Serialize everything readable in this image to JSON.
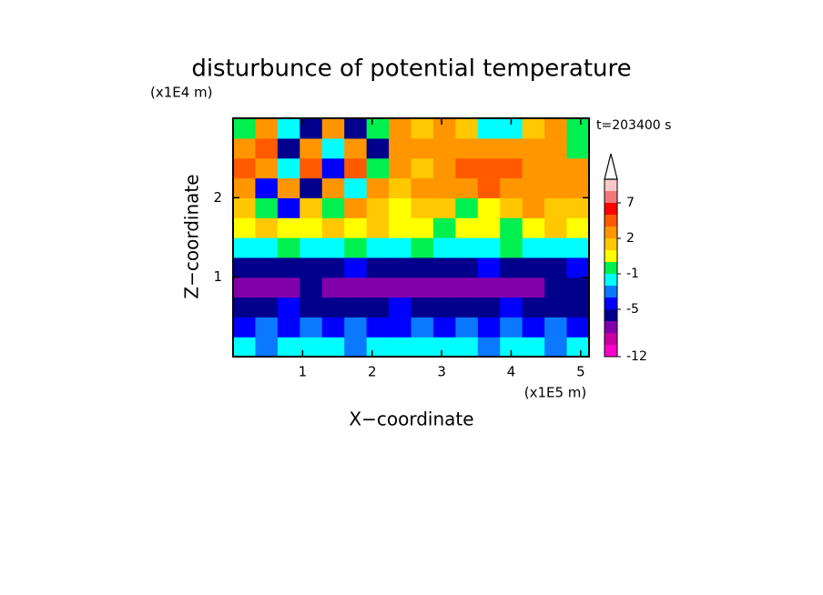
{
  "chart_data": {
    "type": "contour",
    "title": "disturbunce of potential temperature",
    "y_unit": "(x1E4 m)",
    "x_unit": "(x1E5 m)",
    "x_label": "X−coordinate",
    "y_label": "Z−coordinate",
    "annotation": "t=203400 s",
    "xlim": [
      0,
      5.12
    ],
    "ylim": [
      0,
      3
    ],
    "xticks": [
      1,
      2,
      3,
      4,
      5
    ],
    "yticks": [
      1,
      2
    ],
    "levels": [
      -12,
      -10,
      -8,
      -6,
      -5,
      -4,
      -3,
      -1,
      0,
      1,
      2,
      3,
      5,
      7,
      9,
      11
    ],
    "colors": [
      "#ff00c8",
      "#c800a0",
      "#8200aa",
      "#00008c",
      "#0000ff",
      "#0a78ff",
      "#00ffff",
      "#00f050",
      "#ffff00",
      "#ffc800",
      "#ff9600",
      "#ff5a00",
      "#ff0000",
      "#f07878",
      "#f8c8c8"
    ],
    "colorbar_ticks": [
      -12,
      -5,
      -1,
      2,
      7
    ],
    "z": [
      [
        -2,
        -3.5,
        -2,
        -2,
        -2,
        -3.5,
        -2,
        -2,
        -2,
        -2,
        -2,
        -3.5,
        -2,
        -2,
        -3.5,
        -2
      ],
      [
        -4.5,
        -3.5,
        -4.5,
        -3.5,
        -4.5,
        -3.5,
        -4.5,
        -4.5,
        -3.5,
        -4.5,
        -3.5,
        -4.5,
        -3.5,
        -4.5,
        -3.5,
        -4.5
      ],
      [
        -5.5,
        -5.5,
        -4.5,
        -5.5,
        -5.5,
        -5.5,
        -5.5,
        -4.5,
        -5.5,
        -5.5,
        -5.5,
        -5.5,
        -4.5,
        -5.5,
        -5.5,
        -5.5
      ],
      [
        -7,
        -7,
        -7,
        -5.5,
        -7,
        -7,
        -7,
        -7,
        -7,
        -7,
        -7,
        -7,
        -7,
        -7,
        -5.5,
        -5.5
      ],
      [
        -5.5,
        -5.5,
        -5.5,
        -5.5,
        -5.5,
        -4.5,
        -5.5,
        -5.5,
        -5.5,
        -5.5,
        -5.5,
        -4.5,
        -5.5,
        -5.5,
        -5.5,
        -4.5
      ],
      [
        -2,
        -2,
        -0.5,
        -2,
        -2,
        -0.5,
        -2,
        -2,
        -0.5,
        -2,
        -2,
        -2,
        -0.5,
        -2,
        -2,
        -2
      ],
      [
        0.5,
        1.5,
        0.5,
        0.5,
        1.5,
        0.5,
        1.5,
        0.5,
        0.5,
        -0.5,
        0.5,
        0.5,
        -0.5,
        0.5,
        1.5,
        0.5
      ],
      [
        1.5,
        -0.5,
        -4.5,
        1.5,
        -0.5,
        2.5,
        1.5,
        0.5,
        1.5,
        1.5,
        -0.5,
        0.5,
        1.5,
        2.5,
        1.5,
        1.5
      ],
      [
        2.5,
        -4.5,
        2.5,
        -5.5,
        2.5,
        -2,
        2.5,
        1.5,
        2.5,
        2.5,
        2.5,
        4,
        2.5,
        2.5,
        2.5,
        2.5
      ],
      [
        4,
        2.5,
        -2,
        4,
        -4.5,
        4,
        -0.5,
        2.5,
        1.5,
        2.5,
        4,
        4,
        4,
        2.5,
        2.5,
        2.5
      ],
      [
        2.5,
        4,
        -5.5,
        2.5,
        -2,
        2.5,
        -5.5,
        2.5,
        2.5,
        2.5,
        2.5,
        2.5,
        2.5,
        2.5,
        2.5,
        -0.5
      ],
      [
        -0.5,
        2.5,
        -2,
        -5.5,
        2.5,
        -5.5,
        -0.5,
        2.5,
        1.5,
        2.5,
        1.5,
        -2,
        -2,
        1.5,
        2.5,
        -0.5
      ]
    ]
  }
}
